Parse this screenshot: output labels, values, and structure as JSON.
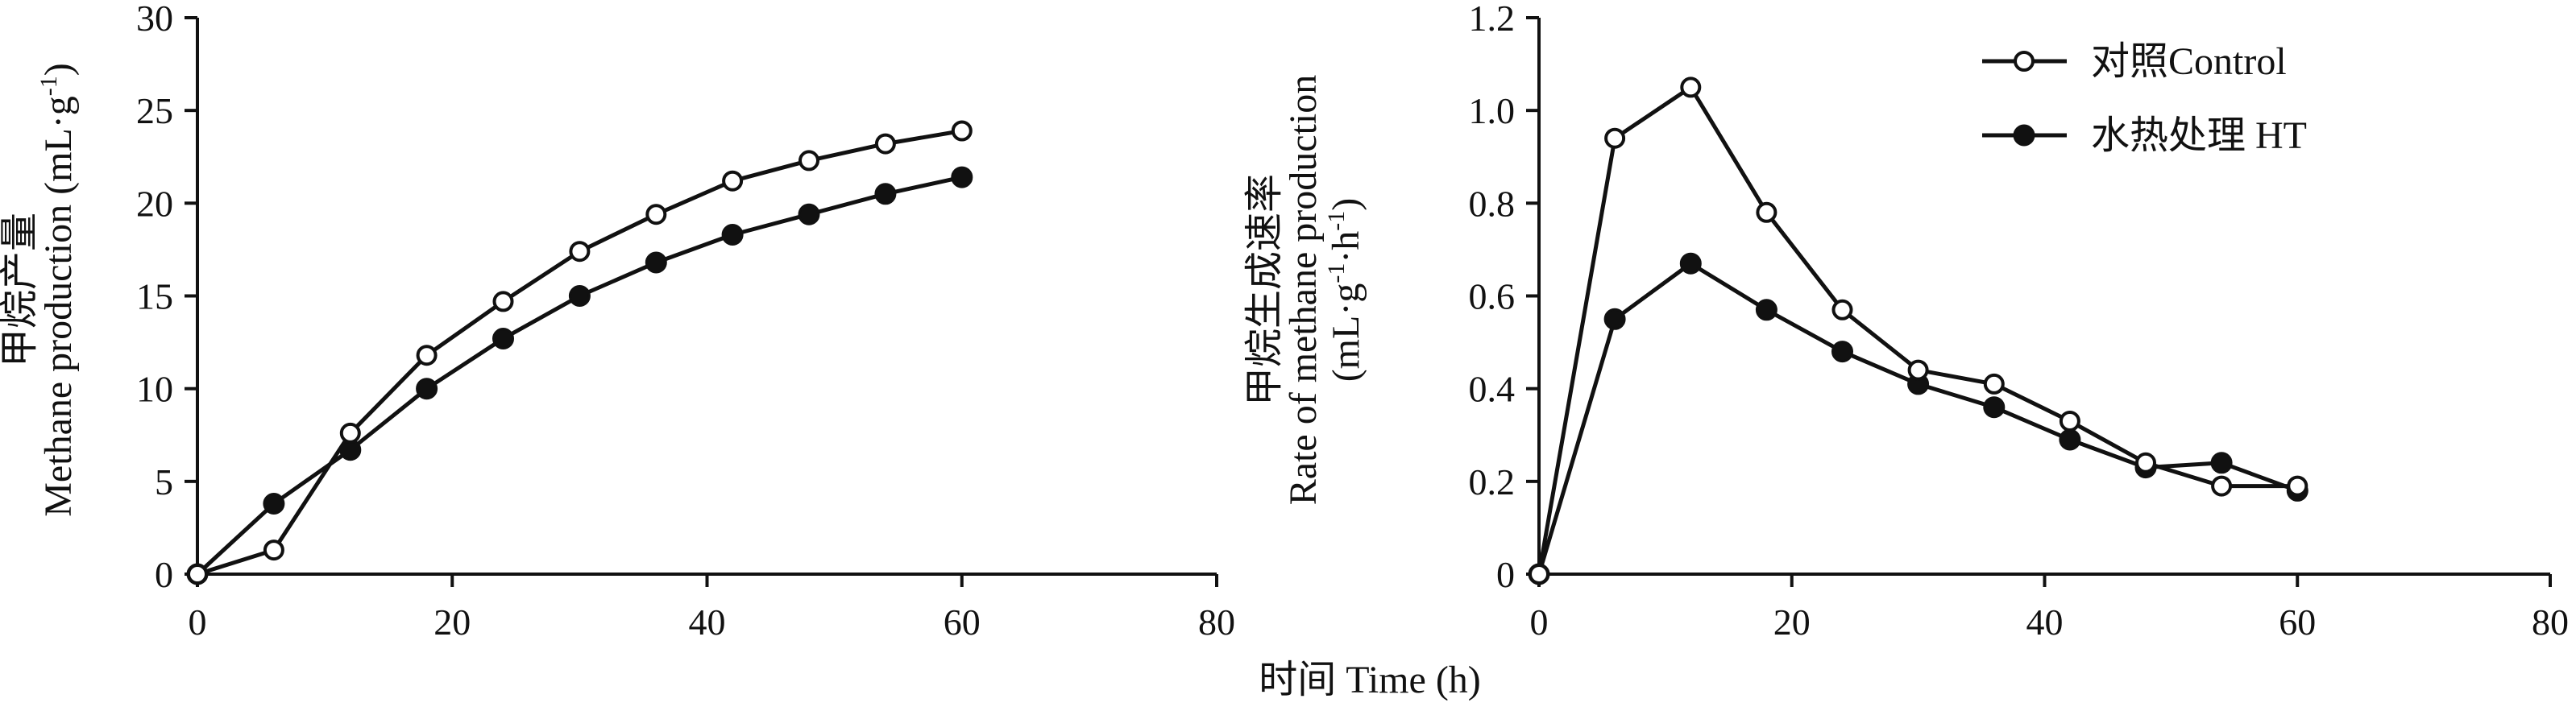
{
  "colors": {
    "line": "#111111",
    "background": "#ffffff",
    "open_marker_fill": "#ffffff",
    "filled_marker_fill": "#111111"
  },
  "shared_xlabel": "时间 Time (h)",
  "legend": {
    "position": "top-right of right panel",
    "items": [
      {
        "label": "对照Control",
        "marker": "open-circle"
      },
      {
        "label": "水热处理 HT",
        "marker": "filled-circle"
      }
    ]
  },
  "chart_data": [
    {
      "type": "line",
      "ylabel_cn": "甲烷产量",
      "ylabel_en": "Methane production (mL·g",
      "ylabel_sup": "-1",
      "ylabel_end": ")",
      "xlim": [
        0,
        80
      ],
      "ylim": [
        0,
        30
      ],
      "xticks": [
        "0",
        "20",
        "40",
        "60",
        "80"
      ],
      "yticks": [
        "0",
        "5",
        "10",
        "15",
        "20",
        "25",
        "30"
      ],
      "x": [
        0,
        6,
        12,
        18,
        24,
        30,
        36,
        42,
        48,
        54,
        60
      ],
      "series": [
        {
          "name": "对照Control",
          "marker": "open",
          "values": [
            0,
            1.3,
            7.6,
            11.8,
            14.7,
            17.4,
            19.4,
            21.2,
            22.3,
            23.2,
            23.9
          ]
        },
        {
          "name": "水热处理 HT",
          "marker": "filled",
          "values": [
            0,
            3.8,
            6.7,
            10.0,
            12.7,
            15.0,
            16.8,
            18.3,
            19.4,
            20.5,
            21.4
          ]
        }
      ]
    },
    {
      "type": "line",
      "ylabel_cn": "甲烷生成速率",
      "ylabel_en": "Rate of methane production",
      "ylabel_units_a": "(mL·g",
      "ylabel_units_sup1": "-1",
      "ylabel_units_b": "·h",
      "ylabel_units_sup2": "-1",
      "ylabel_units_c": ")",
      "xlim": [
        0,
        80
      ],
      "ylim": [
        0,
        1.2
      ],
      "xticks": [
        "0",
        "20",
        "40",
        "60",
        "80"
      ],
      "yticks": [
        "0",
        "0.2",
        "0.4",
        "0.6",
        "0.8",
        "1.0",
        "1.2"
      ],
      "x": [
        0,
        6,
        12,
        18,
        24,
        30,
        36,
        42,
        48,
        54,
        60
      ],
      "series": [
        {
          "name": "对照Control",
          "marker": "open",
          "values": [
            0,
            0.94,
            1.05,
            0.78,
            0.57,
            0.44,
            0.41,
            0.33,
            0.24,
            0.19,
            0.19
          ]
        },
        {
          "name": "水热处理 HT",
          "marker": "filled",
          "values": [
            0,
            0.55,
            0.67,
            0.57,
            0.48,
            0.41,
            0.36,
            0.29,
            0.23,
            0.24,
            0.18
          ]
        }
      ]
    }
  ]
}
